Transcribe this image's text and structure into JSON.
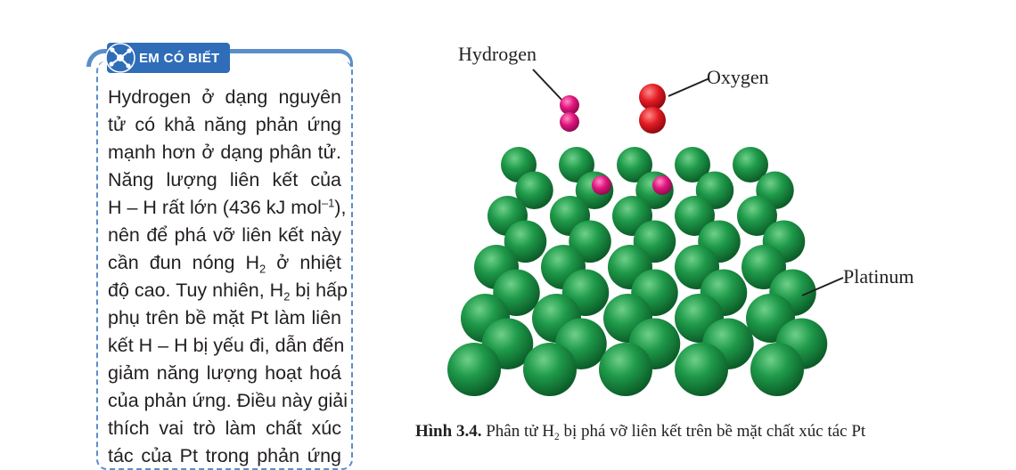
{
  "sidebar": {
    "badge_label": "EM CÓ BIẾT",
    "badge_icon": "atom-icon",
    "lines": [
      "Hydrogen ở dạng nguyên",
      "tử có khả năng phản ứng",
      "mạnh hơn ở dạng phân tử.",
      "Năng lượng liên kết của",
      "H – H rất lớn (436 kJ mol",
      "nên để phá vỡ liên kết này",
      "cần đun nóng H",
      "độ cao. Tuy nhiên, H",
      "phụ trên bề mặt Pt làm liên",
      "kết H – H bị yếu đi, dẫn đến",
      "giảm năng lượng hoạt hoá",
      "của phản ứng. Điều này giải",
      "thích vai trò làm chất xúc",
      "tác của Pt trong phản ứng"
    ],
    "line5_sup": "–1",
    "line5_tail": "),",
    "line7_sub": "2",
    "line7_tail": " ở nhiệt",
    "line8_sub": "2",
    "line8_tail": " bị hấp"
  },
  "figure": {
    "label_hydrogen": "Hydrogen",
    "label_oxygen": "Oxygen",
    "label_platinum": "Platinum",
    "caption_bold": "Hình 3.4.",
    "caption_text": " Phân tử H",
    "caption_sub": "2",
    "caption_tail": " bị phá vỡ liên kết trên bề mặt chất xúc tác Pt",
    "colors": {
      "platinum": "#1f9a4a",
      "hydrogen": "#e0157f",
      "oxygen": "#e31b23"
    }
  }
}
